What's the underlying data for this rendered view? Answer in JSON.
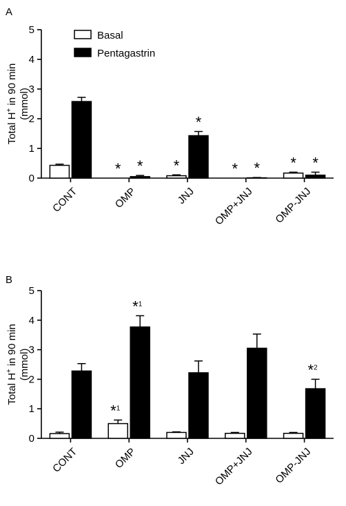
{
  "chart_data": [
    {
      "type": "bar",
      "panel_label": "A",
      "ylabel_line1": "Total H",
      "ylabel_sup": "+",
      "ylabel_line1_rest": " in 90 min",
      "ylabel_line2": "(mmol)",
      "ylim": [
        0,
        5
      ],
      "yticks": [
        "0",
        "1",
        "2",
        "3",
        "4",
        "5"
      ],
      "categories": [
        "CONT",
        "OMP",
        "JNJ",
        "OMP+JNJ",
        "OMP-JNJ"
      ],
      "legend": {
        "placement": "top-left",
        "entries": [
          "Basal",
          "Pentagastrin"
        ]
      },
      "series": [
        {
          "name": "Basal",
          "color": "#ffffff",
          "values": [
            0.43,
            0.0,
            0.08,
            0.0,
            0.17
          ],
          "errors": [
            0.04,
            0.0,
            0.03,
            0.0,
            0.03
          ],
          "annotations": [
            "",
            "*",
            "*",
            "*",
            "*"
          ]
        },
        {
          "name": "Pentagastrin",
          "color": "#000000",
          "values": [
            2.58,
            0.05,
            1.43,
            0.01,
            0.1
          ],
          "errors": [
            0.14,
            0.04,
            0.14,
            0.01,
            0.1
          ],
          "annotations": [
            "",
            "*",
            "*",
            "*",
            "*"
          ]
        }
      ]
    },
    {
      "type": "bar",
      "panel_label": "B",
      "ylabel_line1": "Total H",
      "ylabel_sup": "+",
      "ylabel_line1_rest": " in 90 min",
      "ylabel_line2": "(mmol)",
      "ylim": [
        0,
        5
      ],
      "yticks": [
        "0",
        "1",
        "2",
        "3",
        "4",
        "5"
      ],
      "categories": [
        "CONT",
        "OMP",
        "JNJ",
        "OMP+JNJ",
        "OMP-JNJ"
      ],
      "series": [
        {
          "name": "Basal",
          "color": "#ffffff",
          "values": [
            0.16,
            0.5,
            0.2,
            0.17,
            0.17
          ],
          "errors": [
            0.05,
            0.12,
            0.02,
            0.03,
            0.03
          ],
          "annotations": [
            "",
            "*1",
            "",
            "",
            ""
          ]
        },
        {
          "name": "Pentagastrin",
          "color": "#000000",
          "values": [
            2.28,
            3.77,
            2.22,
            3.05,
            1.68
          ],
          "errors": [
            0.25,
            0.38,
            0.4,
            0.48,
            0.32
          ],
          "annotations": [
            "",
            "*1",
            "",
            "",
            "*2"
          ]
        }
      ]
    }
  ]
}
